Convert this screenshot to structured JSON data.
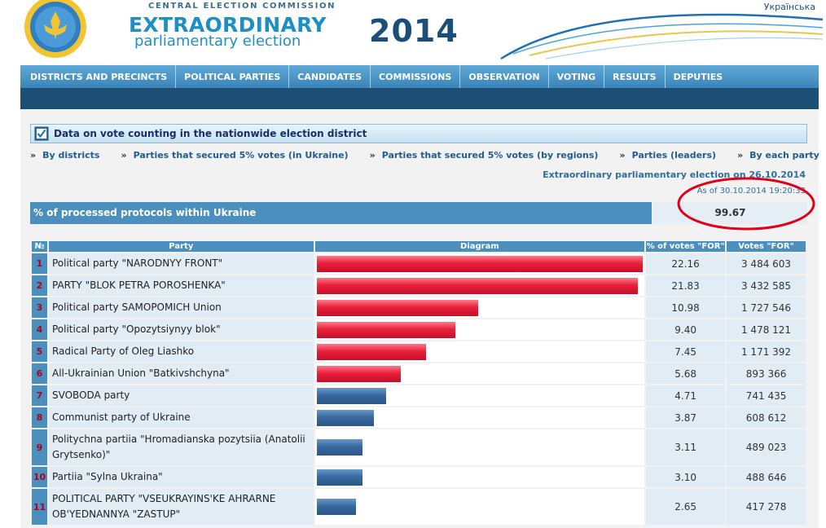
{
  "header": {
    "commission": "CENTRAL ELECTION COMMISSION",
    "title_line1": "EXTRAORDINARY",
    "title_line2": "parliamentary election",
    "year": "2014",
    "language_link": "Українська"
  },
  "nav": {
    "items": [
      "DISTRICTS AND PRECINCTS",
      "POLITICAL PARTIES",
      "CANDIDATES",
      "COMMISSIONS",
      "OBSERVATION",
      "VOTING",
      "RESULTS",
      "DEPUTIES"
    ]
  },
  "section": {
    "title": "Data on vote counting in the nationwide election district"
  },
  "sub_nav": {
    "items": [
      "By districts",
      "Parties that secured 5% votes (in Ukraine)",
      "Parties that secured 5% votes (by regions)",
      "Parties (leaders)",
      "By each party"
    ]
  },
  "election_label": "Extraordinary parliamentary election on 26.10.2014",
  "as_of": "As of 30.10.2014 19:20:33",
  "processed": {
    "label": "% of processed protocols within Ukraine",
    "value": "99.67"
  },
  "table": {
    "headers": {
      "num": "№",
      "party": "Party",
      "diagram": "Diagram",
      "pct": "% of votes \"FOR\"",
      "votes": "Votes \"FOR\""
    },
    "max_pct": 22.16,
    "rows": [
      {
        "num": "1",
        "party": "Political party \"NARODNYY FRONT\"",
        "pct": "22.16",
        "votes": "3 484 603",
        "value": 22.16,
        "color": "red"
      },
      {
        "num": "2",
        "party": "PARTY \"BLOK PETRA POROSHENKA\"",
        "pct": "21.83",
        "votes": "3 432 585",
        "value": 21.83,
        "color": "red"
      },
      {
        "num": "3",
        "party": "Political party SAMOPOMICH Union",
        "pct": "10.98",
        "votes": "1 727 546",
        "value": 10.98,
        "color": "red"
      },
      {
        "num": "4",
        "party": "Political party \"Opozytsiynyy blok\"",
        "pct": "9.40",
        "votes": "1 478 121",
        "value": 9.4,
        "color": "red"
      },
      {
        "num": "5",
        "party": "Radical Party of Oleg Liashko",
        "pct": "7.45",
        "votes": "1 171 392",
        "value": 7.45,
        "color": "red"
      },
      {
        "num": "6",
        "party": "All-Ukrainian Union \"Batkivshchyna\"",
        "pct": "5.68",
        "votes": "893 366",
        "value": 5.68,
        "color": "red"
      },
      {
        "num": "7",
        "party": "SVOBODA party",
        "pct": "4.71",
        "votes": "741 435",
        "value": 4.71,
        "color": "blue"
      },
      {
        "num": "8",
        "party": "Communist party of Ukraine",
        "pct": "3.87",
        "votes": "608 612",
        "value": 3.87,
        "color": "blue"
      },
      {
        "num": "9",
        "party": "Politychna partiia \"Hromadianska pozytsiia (Anatolii Grytsenko)\"",
        "pct": "3.11",
        "votes": "489 023",
        "value": 3.11,
        "color": "blue"
      },
      {
        "num": "10",
        "party": "Partiia \"Sylna Ukraina\"",
        "pct": "3.10",
        "votes": "488 646",
        "value": 3.1,
        "color": "blue"
      },
      {
        "num": "11",
        "party": "POLITICAL PARTY \"VSEUKRAYINS'KE AHRARNE OB'YEDNANNYA \"ZASTUP\"",
        "pct": "2.65",
        "votes": "417 278",
        "value": 2.65,
        "color": "blue"
      }
    ]
  },
  "colors": {
    "accent": "#4a8fbd",
    "nav_dark": "#1d4f74",
    "bar_red": "#e8203c",
    "bar_blue": "#3869a0",
    "highlight": "#e0001a"
  },
  "icons": {
    "emblem": "cec-emblem",
    "section": "checkbox-icon",
    "highlight": "red-ellipse-annotation"
  }
}
